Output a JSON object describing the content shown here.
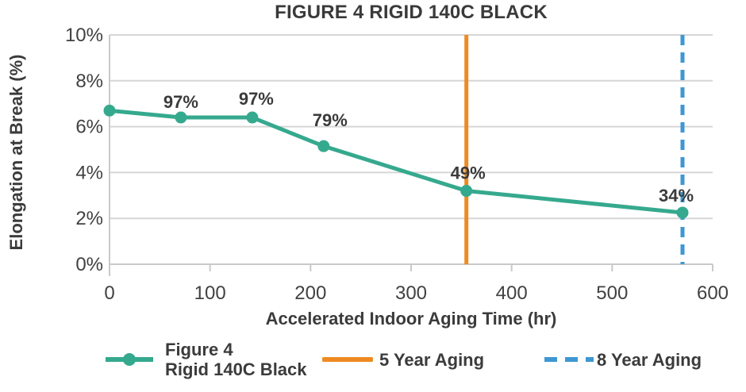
{
  "chart_data": {
    "type": "line",
    "title": "FIGURE 4 RIGID 140C BLACK",
    "xlabel": "Accelerated Indoor Aging Time (hr)",
    "ylabel": "Elongation at Break (%)",
    "xlim": [
      0,
      600
    ],
    "ylim": [
      0,
      10
    ],
    "x_tick_values": [
      0,
      100,
      200,
      300,
      400,
      500,
      600
    ],
    "x_ticks": [
      "0",
      "100",
      "200",
      "300",
      "400",
      "500",
      "600"
    ],
    "y_tick_values": [
      0,
      2,
      4,
      6,
      8,
      10
    ],
    "y_ticks": [
      "0%",
      "2%",
      "4%",
      "6%",
      "8%",
      "10%"
    ],
    "grid": "horizontal",
    "legend_position": "bottom",
    "series": [
      {
        "name": "Figure 4 Rigid 140C Black",
        "legend_lines": [
          "Figure 4",
          "Rigid 140C Black"
        ],
        "color": "#35a98e",
        "marker": "circle",
        "x": [
          0,
          71,
          142,
          213,
          355,
          570
        ],
        "y": [
          6.7,
          6.4,
          6.4,
          5.15,
          3.2,
          2.25
        ],
        "point_labels": [
          "",
          "97%",
          "97%",
          "79%",
          "49%",
          "34%"
        ]
      }
    ],
    "vlines": [
      {
        "name": "5 Year Aging",
        "x": 355,
        "color": "#ee8a23",
        "style": "solid"
      },
      {
        "name": "8 Year Aging",
        "x": 570,
        "color": "#3e97d3",
        "style": "dashed"
      }
    ]
  },
  "colors": {
    "series": "#35a98e",
    "five_year_line": "#ee8a23",
    "eight_year_line": "#3e97d3",
    "gridline": "#d6d6d6",
    "axis": "#c9c9c9",
    "title_text": "#3a3a3a",
    "label_text": "#3b3b3b",
    "tick_text": "#414141"
  }
}
